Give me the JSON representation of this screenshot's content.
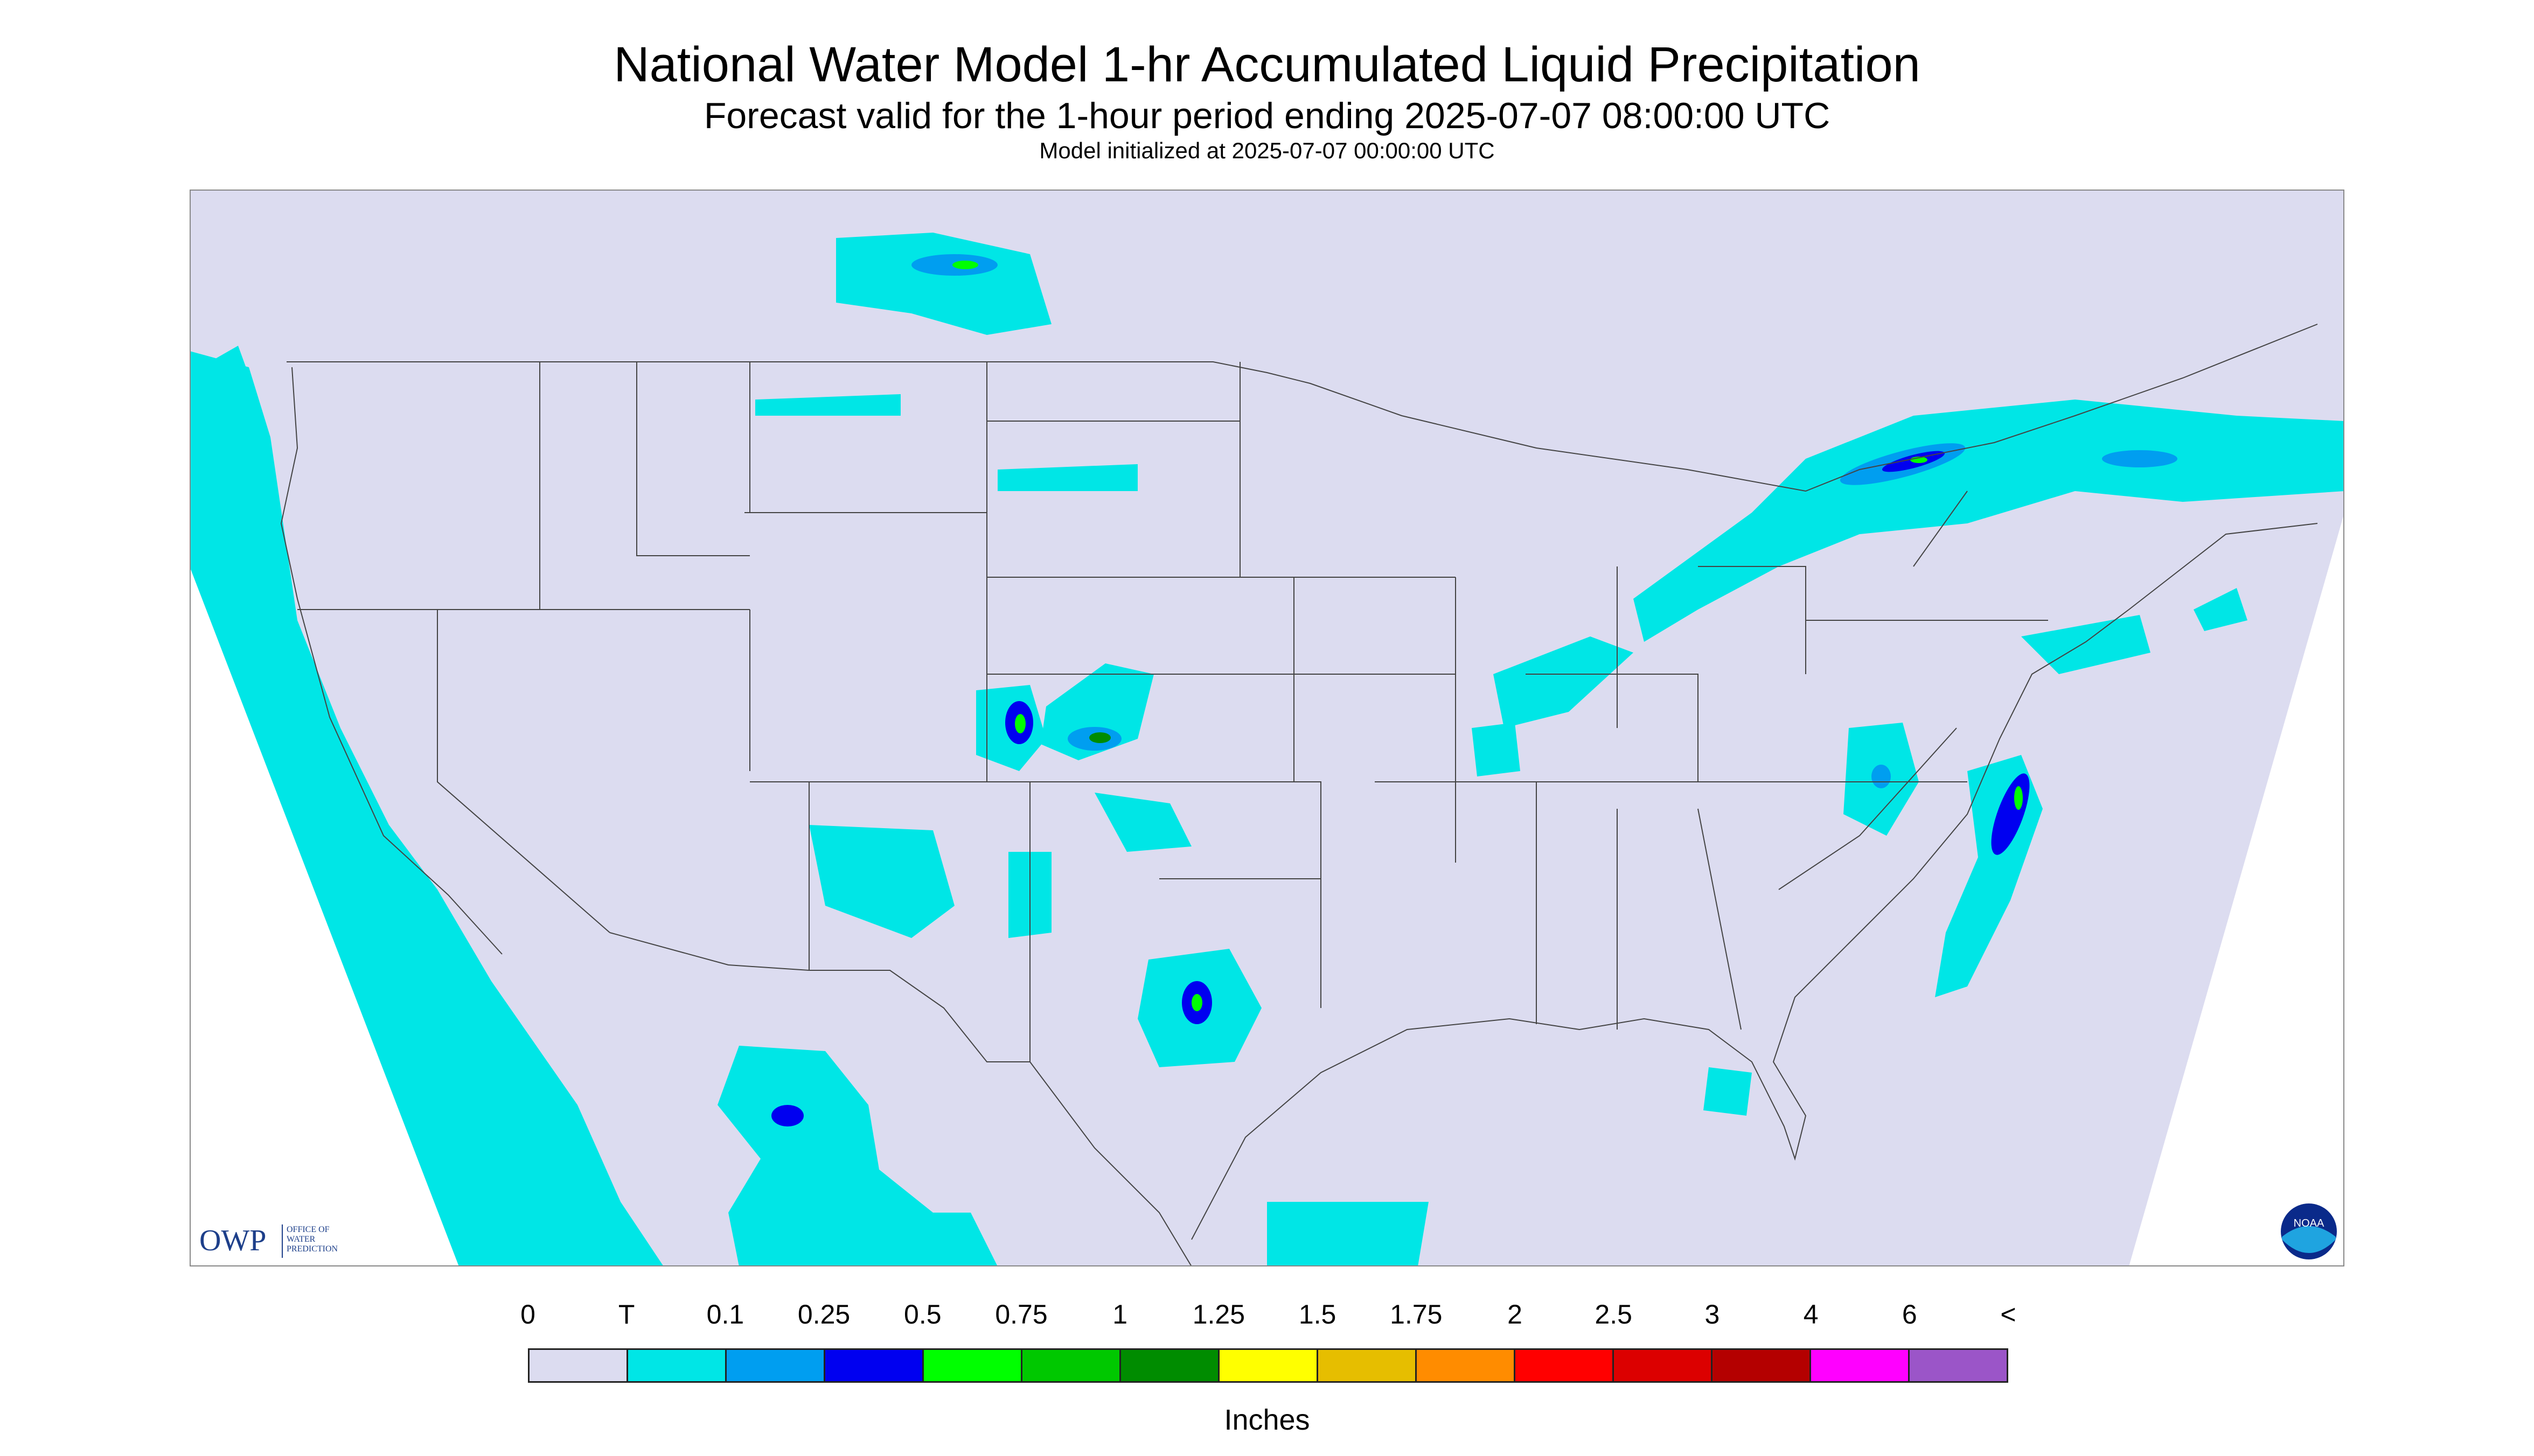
{
  "title": "National Water Model 1-hr Accumulated Liquid Precipitation",
  "subtitle": "Forecast valid for the 1-hour period ending 2025-07-07 08:00:00 UTC",
  "init_line": "Model initialized at 2025-07-07 00:00:00 UTC",
  "logos": {
    "owp_mark": "OWP",
    "owp_text": [
      "OFFICE OF",
      "WATER",
      "PREDICTION"
    ],
    "noaa_text": "NOAA"
  },
  "legend": {
    "labels": [
      "0",
      "T",
      "0.1",
      "0.25",
      "0.5",
      "0.75",
      "1",
      "1.25",
      "1.5",
      "1.75",
      "2",
      "2.5",
      "3",
      "4",
      "6",
      "<"
    ],
    "colors": [
      "#dcdcf0",
      "#00e6e6",
      "#009ef0",
      "#0000f0",
      "#00ff00",
      "#00c800",
      "#008c00",
      "#ffff00",
      "#e6be00",
      "#ff8c00",
      "#ff0000",
      "#dc0000",
      "#b40000",
      "#ff00ff",
      "#9b55c8"
    ],
    "units": "Inches"
  },
  "colors": {
    "no_precip": "#dcdcf0",
    "trace": "#00e6e6",
    "light_blue": "#009ef0",
    "blue": "#0000f0",
    "green": "#00ff00",
    "dark_green": "#008c00",
    "outside_domain": "#ffffff",
    "boundaries": "#444444"
  }
}
